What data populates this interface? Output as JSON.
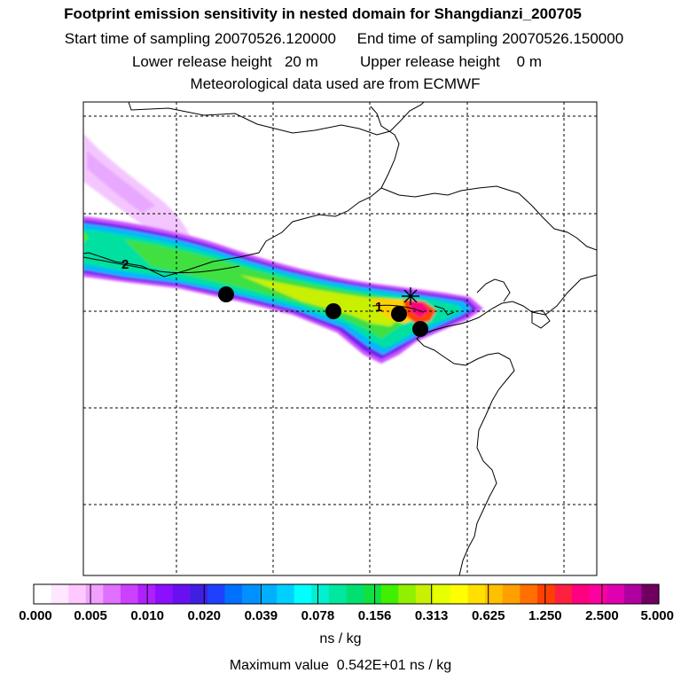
{
  "header": {
    "title": "Footprint emission sensitivity in nested domain for Shangdianzi_200705",
    "sampling_line": "Start time of sampling 20070526.120000     End time of sampling 20070526.150000",
    "release_line": "Lower release height   20 m          Upper release height    0 m",
    "met_line": "Meteorological data used are from ECMWF"
  },
  "map": {
    "contour_labels": [
      "1",
      "2"
    ],
    "station_marker": "star-x-icon",
    "points_count_visible": 4
  },
  "colorbar": {
    "tick_labels": [
      "0.000",
      "0.005",
      "0.010",
      "0.020",
      "0.039",
      "0.078",
      "0.156",
      "0.313",
      "0.625",
      "1.250",
      "2.500",
      "5.000"
    ],
    "unit": "ns / kg",
    "colors": [
      "#ffffff",
      "#ffe8ff",
      "#ffc8ff",
      "#f0a0ff",
      "#e070ff",
      "#cc40ff",
      "#b020ff",
      "#8a10ff",
      "#6a10f0",
      "#4020e0",
      "#2040ff",
      "#0070ff",
      "#0090ff",
      "#00b0ff",
      "#00d0ff",
      "#00ffff",
      "#00f0d0",
      "#00e8a0",
      "#00e070",
      "#10e040",
      "#40f000",
      "#90f000",
      "#c8f000",
      "#e8ff00",
      "#ffff00",
      "#ffe000",
      "#ffc000",
      "#ffa000",
      "#ff7000",
      "#ff4000",
      "#ff2040",
      "#ff0080",
      "#ff00a0",
      "#e000b0",
      "#b000a0",
      "#700060"
    ]
  },
  "footer": {
    "max_value": "Maximum value  0.542E+01 ns / kg"
  }
}
